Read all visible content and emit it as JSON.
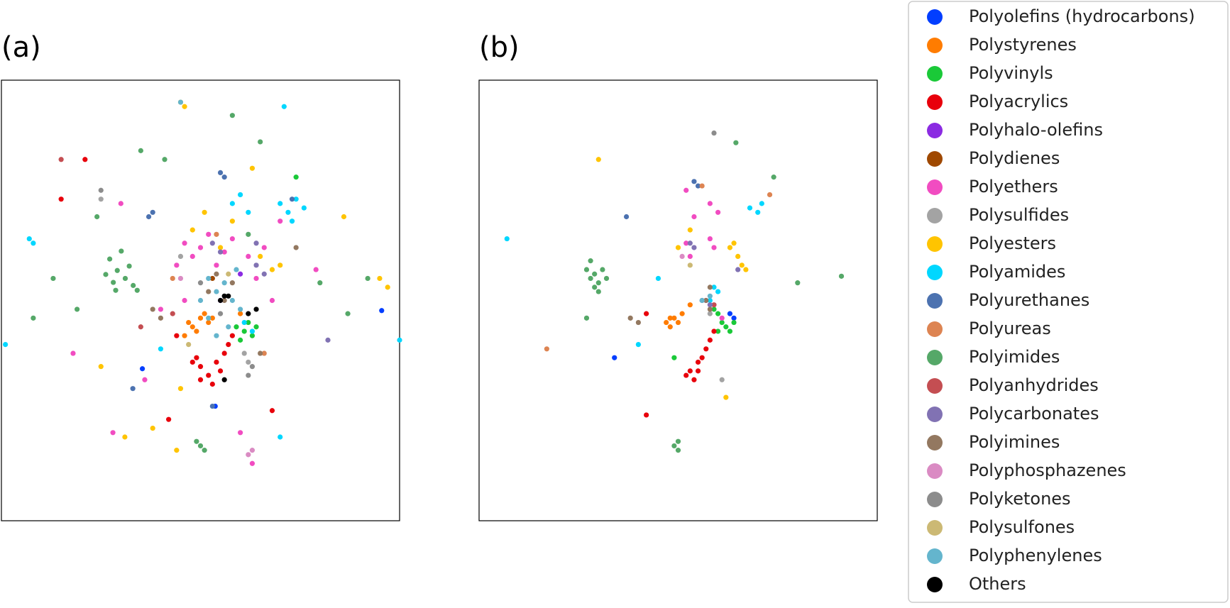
{
  "legend": [
    {
      "name": "Polyolefins (hydrocarbons)",
      "color": "#023eff"
    },
    {
      "name": "Polystyrenes",
      "color": "#ff7c00"
    },
    {
      "name": "Polyvinyls",
      "color": "#1ac938"
    },
    {
      "name": "Polyacrylics",
      "color": "#e8000b"
    },
    {
      "name": "Polyhalo-olefins",
      "color": "#8b2be2"
    },
    {
      "name": "Polydienes",
      "color": "#9f4800"
    },
    {
      "name": "Polyethers",
      "color": "#f14cc1"
    },
    {
      "name": "Polysulfides",
      "color": "#a3a3a3"
    },
    {
      "name": "Polyesters",
      "color": "#ffc400"
    },
    {
      "name": "Polyamides",
      "color": "#00d7ff"
    },
    {
      "name": "Polyurethanes",
      "color": "#4c72b0"
    },
    {
      "name": "Polyureas",
      "color": "#dd8452"
    },
    {
      "name": "Polyimides",
      "color": "#55a868"
    },
    {
      "name": "Polyanhydrides",
      "color": "#c44e52"
    },
    {
      "name": "Polycarbonates",
      "color": "#8172b3"
    },
    {
      "name": "Polyimines",
      "color": "#937860"
    },
    {
      "name": "Polyphosphazenes",
      "color": "#da8bc3"
    },
    {
      "name": "Polyketones",
      "color": "#8c8c8c"
    },
    {
      "name": "Polysulfones",
      "color": "#ccb974"
    },
    {
      "name": "Polyphenylenes",
      "color": "#64b5cd"
    },
    {
      "name": "Others",
      "color": "#000000"
    }
  ],
  "chart_data": [
    {
      "type": "scatter",
      "title": "(a)",
      "xlim": [
        0,
        100
      ],
      "ylim": [
        0,
        100
      ],
      "series": [
        {
          "x": [
            53.7,
            35.4,
            95.5
          ],
          "y": [
            26,
            34.5,
            47.7
          ]
        },
        {
          "x": [
            48,
            50,
            52,
            49,
            51,
            47,
            53,
            46,
            60
          ],
          "y": [
            44,
            46,
            45,
            43,
            47,
            45,
            46,
            42,
            47
          ]
        },
        {
          "x": [
            59,
            61,
            62,
            63,
            60,
            64,
            74
          ],
          "y": [
            44,
            43,
            45,
            42,
            41,
            44,
            78
          ]
        },
        {
          "x": [
            48,
            50,
            52,
            54,
            56,
            57,
            50,
            53,
            55,
            58,
            49,
            44,
            21,
            15,
            68,
            42
          ],
          "y": [
            36,
            35,
            33,
            36,
            38,
            40,
            32,
            31,
            34,
            42,
            37,
            42,
            82,
            73,
            25,
            23
          ]
        },
        {
          "x": [
            55,
            60
          ],
          "y": [
            50,
            56
          ]
        },
        {
          "x": [
            53
          ],
          "y": [
            55
          ]
        },
        {
          "x": [
            46,
            48,
            50,
            52,
            54,
            56,
            44,
            58,
            62,
            66,
            64,
            68,
            46,
            40,
            36,
            60,
            63,
            28,
            18,
            79,
            70,
            30
          ],
          "y": [
            63,
            60,
            62,
            65,
            58,
            61,
            58,
            64,
            60,
            62,
            55,
            50,
            50,
            48,
            32,
            20,
            13,
            20,
            38,
            57,
            68,
            72
          ]
        },
        {
          "x": [
            62,
            45,
            25,
            61
          ],
          "y": [
            36,
            60,
            73,
            38
          ]
        },
        {
          "x": [
            45,
            46,
            63,
            65,
            68,
            70,
            55,
            58,
            51,
            48,
            86,
            95,
            97,
            25,
            38,
            31,
            44,
            45
          ],
          "y": [
            95,
            94,
            80,
            60,
            57,
            58,
            62,
            68,
            70,
            66,
            69,
            55,
            53,
            35,
            21,
            19,
            16,
            30
          ]
        },
        {
          "x": [
            58,
            60,
            62,
            70,
            72,
            74,
            76,
            73,
            7,
            8,
            1,
            100,
            63,
            61,
            70,
            40,
            71
          ],
          "y": [
            72,
            74,
            70,
            72,
            70,
            73,
            71,
            68,
            64,
            63,
            40,
            41,
            43,
            45,
            19,
            39,
            94
          ]
        },
        {
          "x": [
            55,
            56,
            37,
            38,
            73,
            33,
            53
          ],
          "y": [
            79,
            78,
            69,
            70,
            73,
            30,
            26
          ]
        },
        {
          "x": [
            54,
            43,
            66
          ],
          "y": [
            65,
            55,
            38
          ]
        },
        {
          "x": [
            27.2,
            29.1,
            31.1,
            28.1,
            33.1,
            26.2,
            30.1,
            32.1,
            34.1,
            28.7,
            50,
            49,
            51,
            35,
            58,
            65,
            41,
            24,
            13,
            19,
            8,
            80,
            92,
            87,
            62
          ],
          "y": [
            59.4,
            56.8,
            55,
            54.1,
            53.4,
            55.9,
            61.2,
            57.8,
            52.3,
            52.3,
            17,
            18,
            16,
            84,
            92,
            86,
            82,
            69,
            55,
            48,
            46,
            54,
            55,
            47,
            65
          ]
        },
        {
          "x": [
            15,
            35,
            43
          ],
          "y": [
            82,
            44,
            47
          ]
        },
        {
          "x": [
            53,
            55,
            64,
            66,
            82,
            64
          ],
          "y": [
            63,
            61,
            58,
            56,
            41,
            63
          ]
        },
        {
          "x": [
            52,
            54,
            56,
            58,
            40,
            38,
            65,
            74
          ],
          "y": [
            52,
            56,
            50,
            54,
            46,
            48,
            38,
            62
          ]
        },
        {
          "x": [
            62,
            63,
            45
          ],
          "y": [
            15,
            16,
            55
          ]
        },
        {
          "x": [
            55,
            62,
            63,
            50,
            25
          ],
          "y": [
            47,
            33,
            35,
            54,
            75
          ]
        },
        {
          "x": [
            57,
            47
          ],
          "y": [
            56,
            40
          ]
        },
        {
          "x": [
            52,
            54,
            56,
            58,
            60,
            52,
            50,
            59,
            57,
            54,
            45
          ],
          "y": [
            55,
            52,
            54,
            50,
            48,
            46,
            50,
            57,
            44,
            42,
            95
          ]
        },
        {
          "x": [
            55,
            56,
            57,
            62,
            64,
            56
          ],
          "y": [
            50,
            51,
            51,
            47,
            48,
            32
          ]
        }
      ]
    },
    {
      "type": "scatter",
      "title": "(b)",
      "xlim": [
        0,
        100
      ],
      "ylim": [
        0,
        100
      ],
      "series": [
        {
          "x": [
            63,
            64,
            34
          ],
          "y": [
            47,
            46,
            37
          ]
        },
        {
          "x": [
            47,
            48,
            49,
            50,
            51,
            48,
            53
          ],
          "y": [
            45,
            44,
            46,
            45,
            47,
            46,
            49
          ]
        },
        {
          "x": [
            59,
            60,
            61,
            62,
            63,
            64,
            60,
            49
          ],
          "y": [
            48,
            47,
            45,
            44,
            43,
            45,
            43,
            37
          ]
        },
        {
          "x": [
            53,
            54,
            55,
            56,
            57,
            58,
            59,
            52,
            55,
            42,
            42
          ],
          "y": [
            34,
            32,
            34,
            37,
            39,
            41,
            43,
            33,
            36,
            47,
            24
          ]
        },
        {
          "x": [
            57
          ],
          "y": [
            50
          ]
        },
        {
          "x": [],
          "y": []
        },
        {
          "x": [
            58,
            59,
            60,
            58,
            52,
            53,
            52,
            54,
            61
          ],
          "y": [
            64,
            62,
            70,
            72,
            63,
            60,
            75,
            69,
            46
          ]
        },
        {
          "x": [
            58,
            61
          ],
          "y": [
            47,
            32
          ]
        },
        {
          "x": [
            63,
            64,
            65,
            66,
            67,
            30,
            50,
            53,
            62
          ],
          "y": [
            62,
            63,
            60,
            58,
            57,
            82,
            62,
            66,
            28
          ]
        },
        {
          "x": [
            59,
            60,
            68,
            70,
            71,
            7,
            45,
            58,
            40
          ],
          "y": [
            53,
            52,
            71,
            70,
            72,
            64,
            55,
            50,
            40
          ]
        },
        {
          "x": [
            54,
            55,
            37
          ],
          "y": [
            77,
            76,
            69
          ]
        },
        {
          "x": [
            56,
            73,
            17
          ],
          "y": [
            76,
            74,
            39
          ]
        },
        {
          "x": [
            27,
            28,
            29,
            30,
            31,
            29,
            28,
            32,
            30,
            49,
            50,
            50,
            64.5,
            74,
            80,
            91,
            27
          ],
          "y": [
            57,
            55,
            56,
            54,
            57,
            53,
            59,
            55,
            52,
            17,
            16,
            18,
            85.8,
            78,
            54,
            55.5,
            46
          ]
        },
        {
          "x": [
            59
          ],
          "y": [
            49
          ]
        },
        {
          "x": [
            53,
            54,
            56,
            58,
            65
          ],
          "y": [
            63,
            62,
            50,
            49,
            57
          ]
        },
        {
          "x": [
            58,
            57,
            38,
            40,
            58
          ],
          "y": [
            48,
            50,
            46,
            45,
            53
          ]
        },
        {
          "x": [
            51
          ],
          "y": [
            60
          ]
        },
        {
          "x": [
            59
          ],
          "y": [
            88
          ]
        },
        {
          "x": [
            53
          ],
          "y": [
            58
          ]
        },
        {
          "x": [
            56,
            58
          ],
          "y": [
            50,
            51
          ]
        },
        {
          "x": [],
          "y": []
        }
      ]
    }
  ]
}
